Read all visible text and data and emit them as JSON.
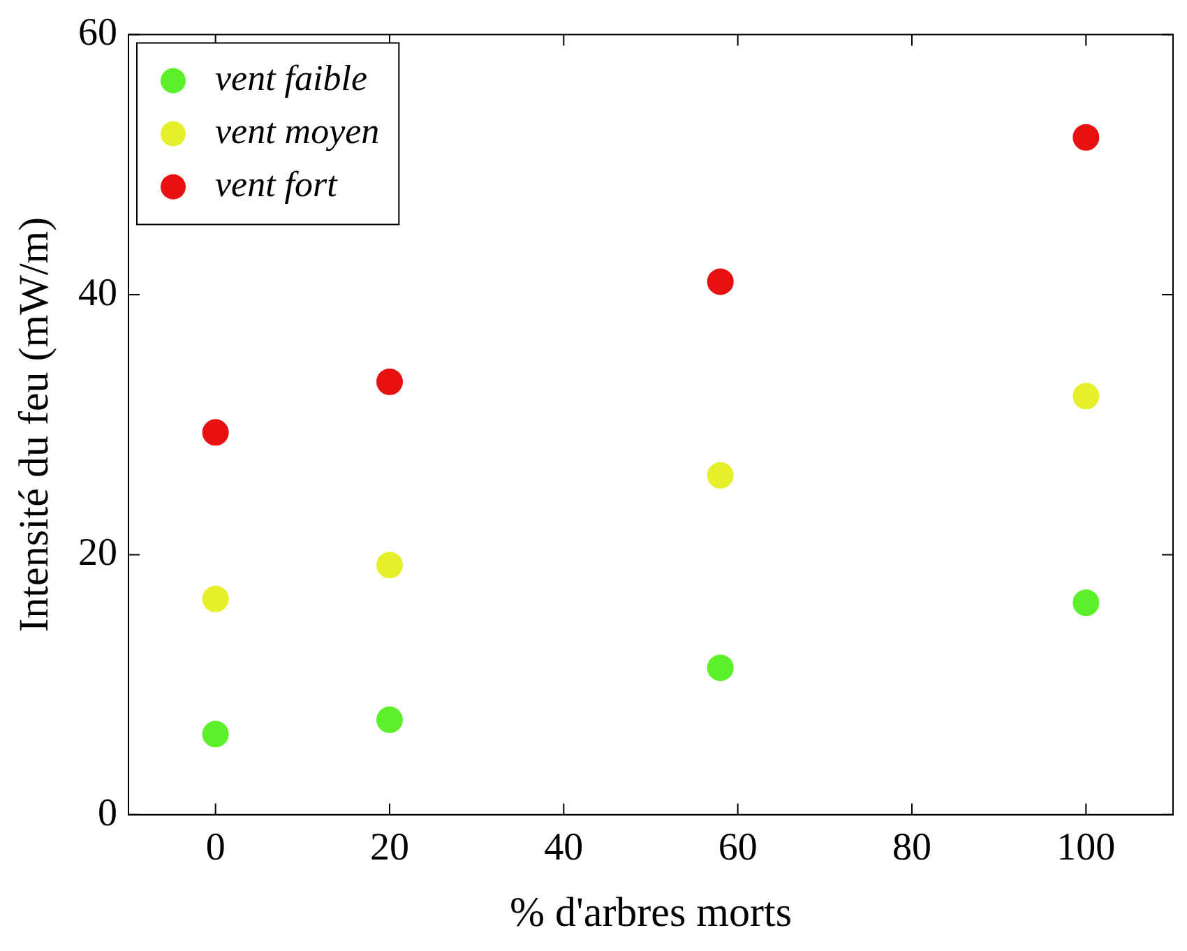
{
  "chart_data": {
    "type": "scatter",
    "xlabel": "% d'arbres morts",
    "ylabel": "Intensité du feu (mW/m)",
    "xlim": [
      -10,
      110
    ],
    "xticks": [
      0,
      20,
      40,
      60,
      80,
      100
    ],
    "ylim": [
      0,
      60
    ],
    "yticks": [
      0,
      20,
      40,
      60
    ],
    "grid": false,
    "legend": "top left",
    "marker": "circle",
    "series": [
      {
        "name": "vent faible",
        "color": "#5cf02a",
        "x": [
          0,
          20,
          58,
          100
        ],
        "values": [
          6.2,
          7.3,
          11.3,
          16.3
        ]
      },
      {
        "name": "vent moyen",
        "color": "#e6f02a",
        "x": [
          0,
          20,
          58,
          100
        ],
        "values": [
          16.6,
          19.2,
          26.1,
          32.2
        ]
      },
      {
        "name": "vent fort",
        "color": "#e81010",
        "x": [
          0,
          20,
          58,
          100
        ],
        "values": [
          29.4,
          33.3,
          41.0,
          52.1
        ]
      }
    ]
  }
}
